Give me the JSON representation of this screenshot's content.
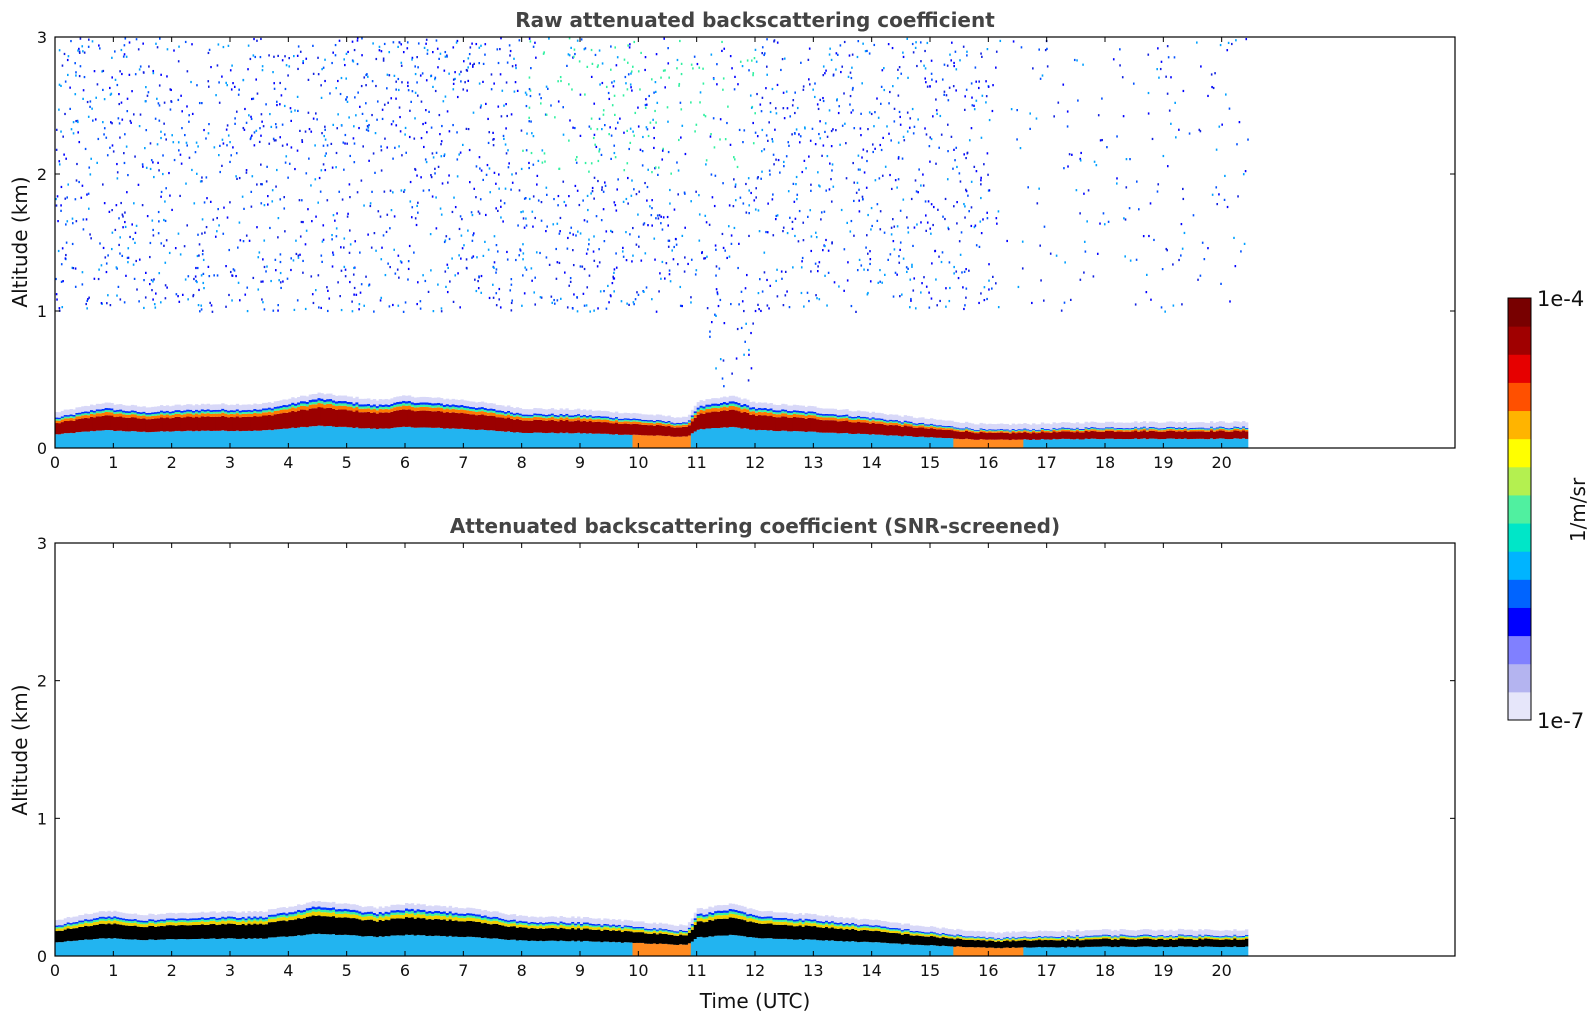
{
  "chart_data": [
    {
      "type": "heatmap",
      "title": "Raw attenuated backscattering coefficient",
      "xlabel": "",
      "ylabel": "Altitude (km)",
      "xlim": [
        0,
        24
      ],
      "ylim": [
        0,
        3
      ],
      "x_ticks": [
        0,
        1,
        2,
        3,
        4,
        5,
        6,
        7,
        8,
        9,
        10,
        11,
        12,
        13,
        14,
        15,
        16,
        17,
        18,
        19,
        20
      ],
      "y_ticks": [
        0,
        1,
        2,
        3
      ],
      "data_end_hour": 20.45,
      "layer_top_km": [
        [
          0,
          0.22
        ],
        [
          0.8,
          0.29
        ],
        [
          1.5,
          0.26
        ],
        [
          2.5,
          0.28
        ],
        [
          3.5,
          0.28
        ],
        [
          4.5,
          0.36
        ],
        [
          5.5,
          0.31
        ],
        [
          6.0,
          0.34
        ],
        [
          7.0,
          0.31
        ],
        [
          8.0,
          0.25
        ],
        [
          9.0,
          0.24
        ],
        [
          10.0,
          0.21
        ],
        [
          10.8,
          0.18
        ],
        [
          11.0,
          0.3
        ],
        [
          11.6,
          0.34
        ],
        [
          12.0,
          0.29
        ],
        [
          13.0,
          0.26
        ],
        [
          14.0,
          0.22
        ],
        [
          15.0,
          0.17
        ],
        [
          16.0,
          0.13
        ],
        [
          17.0,
          0.14
        ],
        [
          18.0,
          0.15
        ],
        [
          19.0,
          0.15
        ],
        [
          20.45,
          0.15
        ]
      ],
      "noise_region": "scattered signal 1–3 km between 0 and 16 UTC, sparse after 16 UTC"
    },
    {
      "type": "heatmap",
      "title": "Attenuated backscattering coefficient (SNR-screened)",
      "xlabel": "Time (UTC)",
      "ylabel": "Altitude (km)",
      "xlim": [
        0,
        24
      ],
      "ylim": [
        0,
        3
      ],
      "x_ticks": [
        0,
        1,
        2,
        3,
        4,
        5,
        6,
        7,
        8,
        9,
        10,
        11,
        12,
        13,
        14,
        15,
        16,
        17,
        18,
        19,
        20
      ],
      "y_ticks": [
        0,
        1,
        2,
        3
      ],
      "data_end_hour": 20.45,
      "layer_top_km": [
        [
          0,
          0.22
        ],
        [
          0.8,
          0.29
        ],
        [
          1.5,
          0.26
        ],
        [
          2.5,
          0.28
        ],
        [
          3.5,
          0.28
        ],
        [
          4.5,
          0.36
        ],
        [
          5.5,
          0.31
        ],
        [
          6.0,
          0.34
        ],
        [
          7.0,
          0.31
        ],
        [
          8.0,
          0.25
        ],
        [
          9.0,
          0.24
        ],
        [
          10.0,
          0.21
        ],
        [
          10.8,
          0.18
        ],
        [
          11.0,
          0.3
        ],
        [
          11.6,
          0.34
        ],
        [
          12.0,
          0.29
        ],
        [
          13.0,
          0.26
        ],
        [
          14.0,
          0.22
        ],
        [
          15.0,
          0.17
        ],
        [
          16.0,
          0.13
        ],
        [
          17.0,
          0.14
        ],
        [
          18.0,
          0.15
        ],
        [
          19.0,
          0.15
        ],
        [
          20.45,
          0.15
        ]
      ],
      "noise_region": "none (screened)"
    }
  ],
  "colorbar": {
    "label": "1/m/sr",
    "min_label": "1e-7",
    "max_label": "1e-4",
    "colors": [
      "#e6e6fa",
      "#b4b4f0",
      "#8080ff",
      "#0000ff",
      "#0064ff",
      "#00b4ff",
      "#00e6c8",
      "#50f0a0",
      "#b4f050",
      "#ffff00",
      "#ffb400",
      "#ff5000",
      "#e60000",
      "#a00000",
      "#780000"
    ]
  }
}
